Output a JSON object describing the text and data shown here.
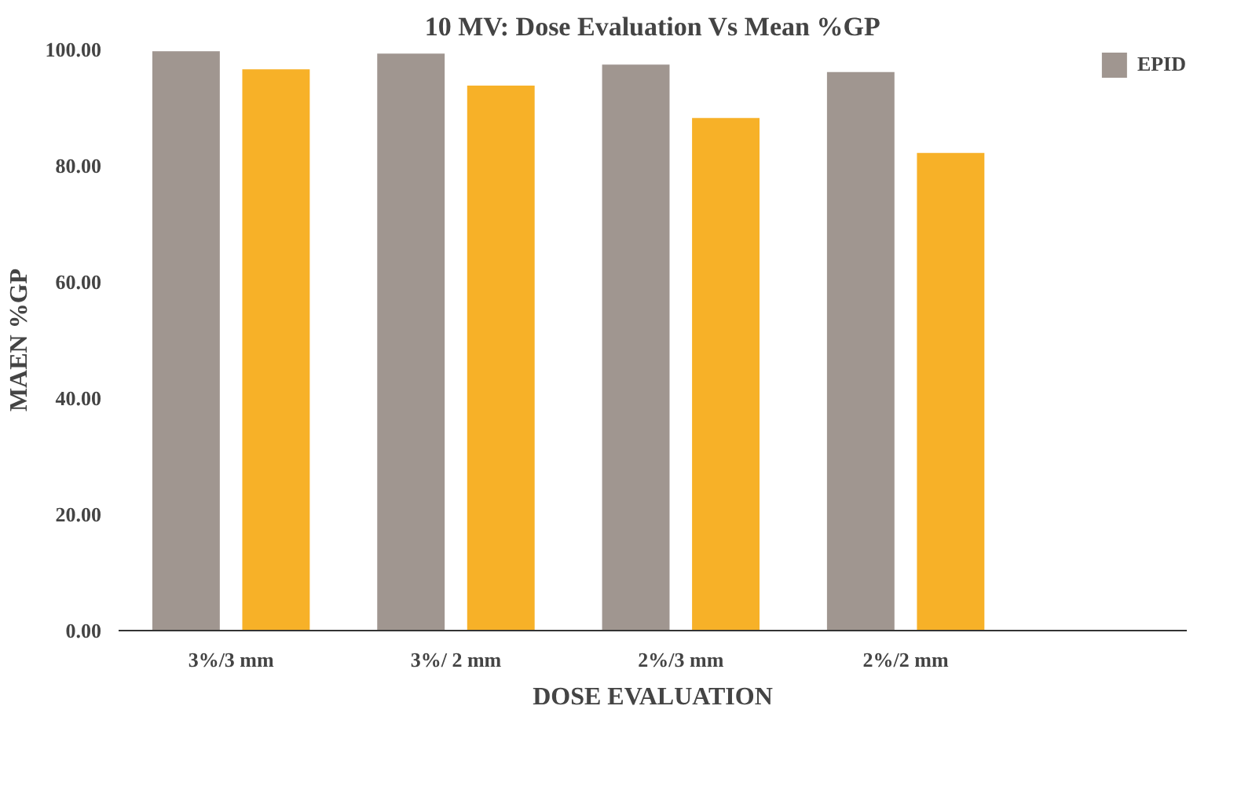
{
  "chart_data": {
    "type": "bar",
    "title": "10 MV: Dose Evaluation Vs Mean %GP",
    "xlabel": "DOSE EVALUATION",
    "ylabel": "MAEN %GP",
    "categories": [
      "3%/3 mm",
      "3%/ 2 mm",
      "2%/3 mm",
      "2%/2 mm"
    ],
    "series": [
      {
        "name": "EPID",
        "color": "#a09690",
        "values": [
          99.7,
          99.3,
          97.4,
          96.1
        ]
      },
      {
        "color": "#f7b128",
        "values": [
          96.6,
          93.8,
          88.2,
          82.2
        ]
      }
    ],
    "ylim": [
      0,
      100
    ],
    "yticks": [
      {
        "value": 0,
        "label": "0.00"
      },
      {
        "value": 20,
        "label": "20.00"
      },
      {
        "value": 40,
        "label": "40.00"
      },
      {
        "value": 60,
        "label": "60.00"
      },
      {
        "value": 80,
        "label": "80.00"
      },
      {
        "value": 100,
        "label": "100.00"
      }
    ],
    "grid": false,
    "legend": "top right"
  }
}
